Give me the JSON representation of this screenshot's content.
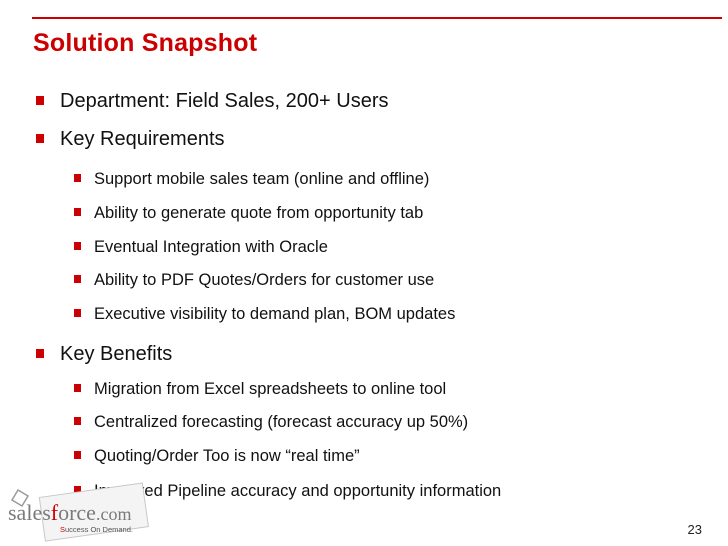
{
  "slide": {
    "title": "Solution Snapshot",
    "page_number": "23"
  },
  "bullets": {
    "department": "Department: Field Sales, 200+ Users",
    "requirements_heading": "Key Requirements",
    "requirements": [
      "Support mobile sales team (online and offline)",
      "Ability to generate quote from opportunity tab",
      "Eventual Integration with Oracle",
      "Ability to PDF Quotes/Orders for customer use",
      "Executive visibility to demand plan, BOM updates"
    ],
    "benefits_heading": "Key Benefits",
    "benefits": [
      "Migration from Excel spreadsheets to online tool",
      "Centralized forecasting (forecast accuracy up 50%)",
      "Quoting/Order Too is now “real time”",
      "Improved Pipeline accuracy and opportunity information"
    ]
  },
  "logo": {
    "brand": "salesforce.com",
    "tagline": "Success On Demand.",
    "icon": "salesforce-logo-icon"
  },
  "colors": {
    "accent": "#cc0000",
    "text": "#111111"
  }
}
